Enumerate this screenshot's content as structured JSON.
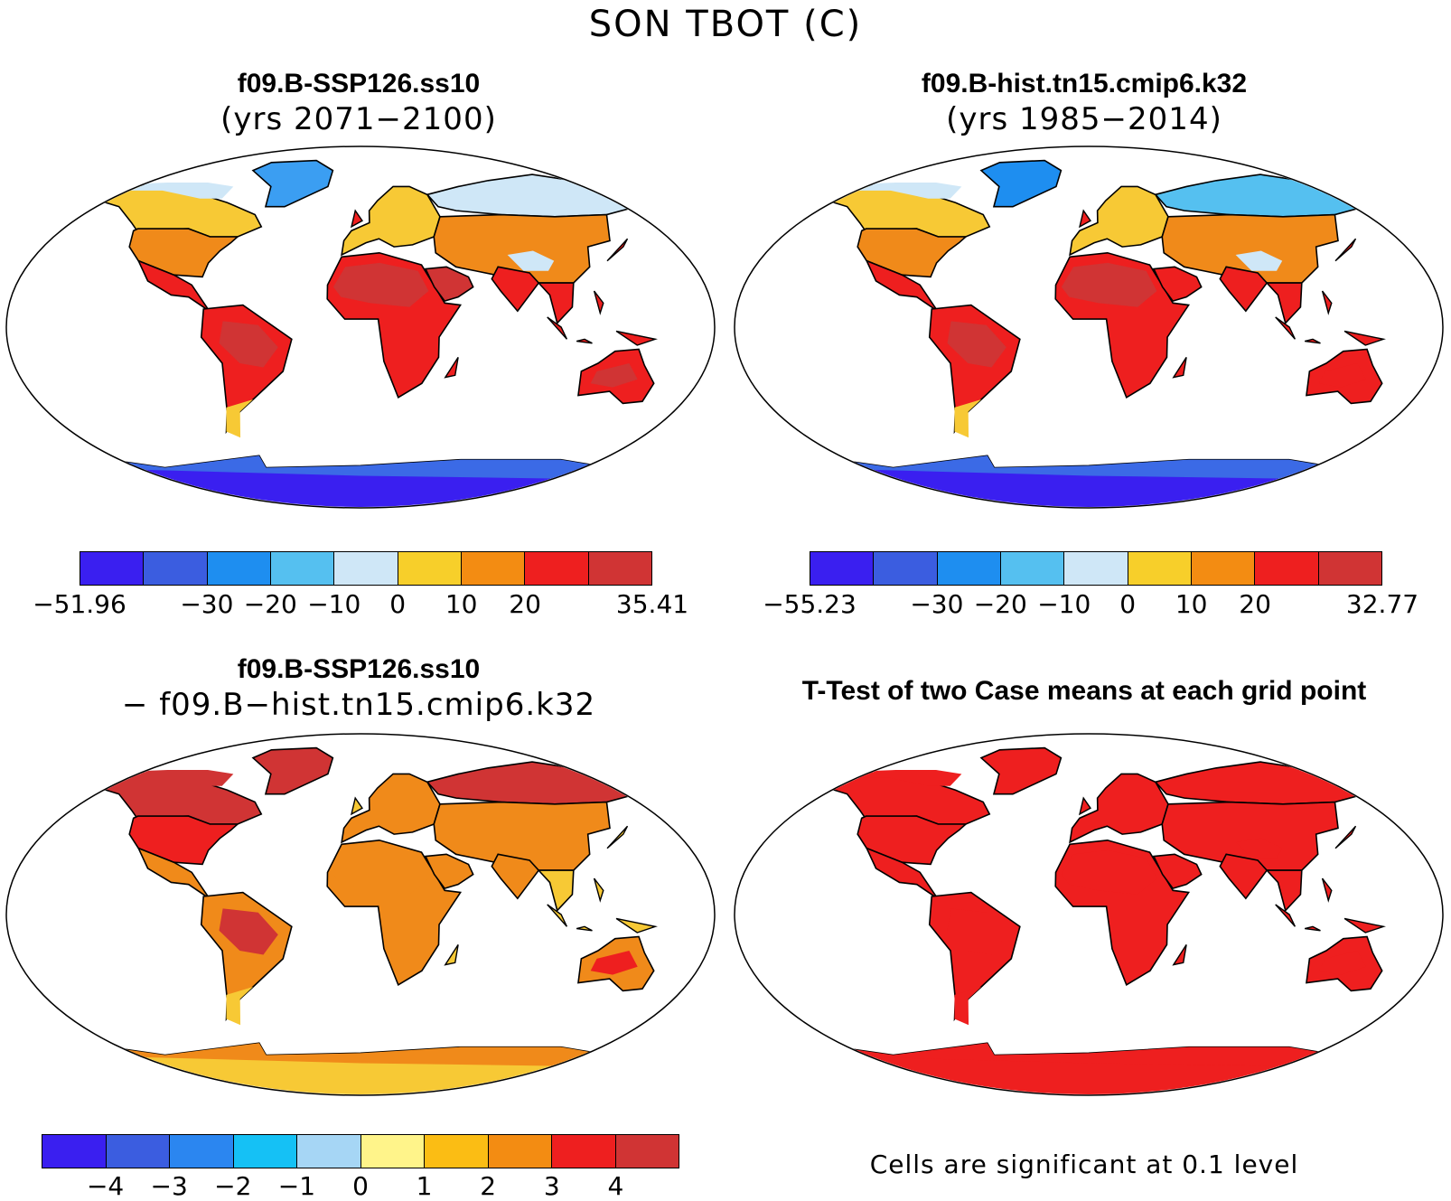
{
  "title": "SON TBOT (C)",
  "panels": [
    {
      "title": "f09.B-SSP126.ss10",
      "subtitle": "(yrs 2071−2100)",
      "ocean": "#ffffff",
      "regions": {
        "greenland": "#3b9ef2",
        "arctic_canada": "#cfe7f7",
        "canada": "#f7c935",
        "usa": "#f08a1a",
        "mexico": "#ee1f1f",
        "south_america": "#ee1f1f",
        "sa_interior": "#d03434",
        "patagonia": "#f7c935",
        "europe": "#f7c935",
        "north_asia": "#cfe7f7",
        "central_asia": "#f08a1a",
        "tibet": "#cfe7f7",
        "africa": "#ee1f1f",
        "sahara": "#d03434",
        "arabia": "#d03434",
        "india": "#ee1f1f",
        "se_asia": "#ee1f1f",
        "australia": "#ee1f1f",
        "aus_interior": "#d03434",
        "antarctica": "#3a1ff0",
        "antarctica_coast": "#3b6ae6"
      },
      "colorbar": {
        "colors": [
          "#3a1ff0",
          "#3b5de0",
          "#1e8ef0",
          "#55c0f0",
          "#cfe7f7",
          "#f7cf2a",
          "#f38c12",
          "#ee1f1f",
          "#d03434"
        ],
        "labels": [
          "−51.96",
          "−30",
          "−20",
          "−10",
          "0",
          "10",
          "20",
          "35.41"
        ]
      }
    },
    {
      "title": "f09.B-hist.tn15.cmip6.k32",
      "subtitle": "(yrs 1985−2014)",
      "ocean": "#ffffff",
      "regions": {
        "greenland": "#1e8ef0",
        "arctic_canada": "#cfe7f7",
        "canada": "#f7c935",
        "usa": "#f08a1a",
        "mexico": "#ee1f1f",
        "south_america": "#ee1f1f",
        "sa_interior": "#d03434",
        "patagonia": "#f7c935",
        "europe": "#f7c935",
        "north_asia": "#55c0f0",
        "central_asia": "#f08a1a",
        "tibet": "#cfe7f7",
        "africa": "#ee1f1f",
        "sahara": "#d03434",
        "arabia": "#ee1f1f",
        "india": "#ee1f1f",
        "se_asia": "#ee1f1f",
        "australia": "#ee1f1f",
        "aus_interior": "#ee1f1f",
        "antarctica": "#3a1ff0",
        "antarctica_coast": "#3b6ae6"
      },
      "colorbar": {
        "colors": [
          "#3a1ff0",
          "#3b5de0",
          "#1e8ef0",
          "#55c0f0",
          "#cfe7f7",
          "#f7cf2a",
          "#f38c12",
          "#ee1f1f",
          "#d03434"
        ],
        "labels": [
          "−55.23",
          "−30",
          "−20",
          "−10",
          "0",
          "10",
          "20",
          "32.77"
        ]
      }
    },
    {
      "title": "f09.B-SSP126.ss10",
      "subtitle": "− f09.B−hist.tn15.cmip6.k32",
      "ocean": "#ffffff",
      "regions": {
        "greenland": "#d03434",
        "arctic_canada": "#d03434",
        "canada": "#d03434",
        "usa": "#ee1f1f",
        "mexico": "#f08a1a",
        "south_america": "#f08a1a",
        "sa_interior": "#d03434",
        "patagonia": "#f7c935",
        "europe": "#f08a1a",
        "north_asia": "#d03434",
        "central_asia": "#f08a1a",
        "tibet": "#f08a1a",
        "africa": "#f08a1a",
        "sahara": "#f08a1a",
        "arabia": "#f08a1a",
        "india": "#f08a1a",
        "se_asia": "#f7c935",
        "australia": "#f08a1a",
        "aus_interior": "#ee1f1f",
        "antarctica": "#f7c935",
        "antarctica_coast": "#f08a1a"
      },
      "colorbar": {
        "colors": [
          "#3a1ff0",
          "#3b5de0",
          "#2b86f0",
          "#15c1f5",
          "#a6d6f5",
          "#fff48a",
          "#fbbd14",
          "#f38c12",
          "#ee1f1f",
          "#d03434"
        ],
        "labels": [
          "−4",
          "−3",
          "−2",
          "−1",
          "0",
          "1",
          "2",
          "3",
          "4"
        ]
      }
    },
    {
      "title": "T-Test of two Case means at each grid point",
      "subtitle": "",
      "ocean": "#ffffff",
      "uniform_land": "#ee1f1f",
      "note": "Cells are significant at 0.1 level"
    }
  ]
}
